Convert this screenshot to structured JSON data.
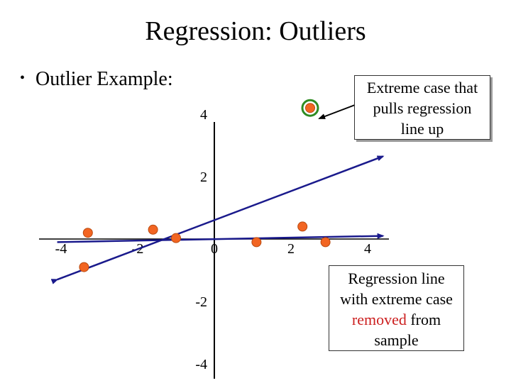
{
  "title": "Regression:  Outliers",
  "bullet": {
    "text": "Outlier Example:"
  },
  "callout_top": {
    "text": "Extreme case that pulls regression line up",
    "lines": [
      "Extreme case that",
      "pulls regression",
      "line up"
    ]
  },
  "callout_bottom": {
    "line1": "Regression line",
    "line2": "with extreme case",
    "highlight": "removed",
    "line3_rest": " from",
    "line4": "sample"
  },
  "colors": {
    "point_fill": "#f26522",
    "outlier_ring": "#2e8b22",
    "regression_line": "#1a1a8c",
    "highlight_text": "#cc1f1f"
  },
  "chart_data": {
    "type": "scatter",
    "x_ticks": [
      "-4",
      "-2",
      "0",
      "2",
      "4"
    ],
    "y_ticks": [
      "4",
      "2",
      "-2",
      "-4"
    ],
    "xlim": [
      -4.3,
      4.6
    ],
    "ylim": [
      -4.2,
      4.2
    ],
    "points": [
      {
        "x": -3.3,
        "y": 0.2
      },
      {
        "x": -3.4,
        "y": -0.9
      },
      {
        "x": -1.6,
        "y": 0.3
      },
      {
        "x": -1.0,
        "y": 0.03
      },
      {
        "x": 1.1,
        "y": -0.1
      },
      {
        "x": 2.3,
        "y": 0.4
      },
      {
        "x": 2.9,
        "y": -0.1
      }
    ],
    "outlier": {
      "x": 2.5,
      "y": 4.2
    },
    "regression_with_outlier": {
      "x1": -4.1,
      "y1": -1.3,
      "x2": 4.4,
      "y2": 2.65
    },
    "regression_without_outlier": {
      "x1": -4.1,
      "y1": -0.1,
      "x2": 4.4,
      "y2": 0.1
    }
  }
}
